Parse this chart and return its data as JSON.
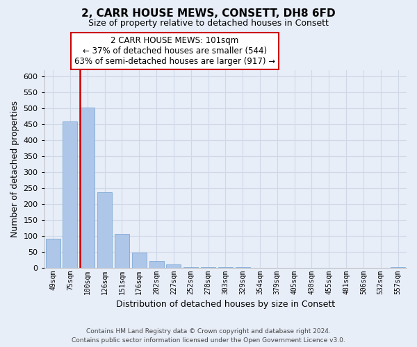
{
  "title": "2, CARR HOUSE MEWS, CONSETT, DH8 6FD",
  "subtitle": "Size of property relative to detached houses in Consett",
  "xlabel": "Distribution of detached houses by size in Consett",
  "ylabel": "Number of detached properties",
  "bar_labels": [
    "49sqm",
    "75sqm",
    "100sqm",
    "126sqm",
    "151sqm",
    "176sqm",
    "202sqm",
    "227sqm",
    "252sqm",
    "278sqm",
    "303sqm",
    "329sqm",
    "354sqm",
    "379sqm",
    "405sqm",
    "430sqm",
    "455sqm",
    "481sqm",
    "506sqm",
    "532sqm",
    "557sqm"
  ],
  "bar_values": [
    90,
    458,
    502,
    237,
    106,
    46,
    21,
    10,
    2,
    1,
    1,
    1,
    0,
    0,
    0,
    0,
    0,
    0,
    0,
    0,
    1
  ],
  "bar_color": "#aec6e8",
  "bar_edge_color": "#6fa0d0",
  "vline_color": "#cc0000",
  "vline_x_index": 2,
  "ylim": [
    0,
    620
  ],
  "yticks": [
    0,
    50,
    100,
    150,
    200,
    250,
    300,
    350,
    400,
    450,
    500,
    550,
    600
  ],
  "annotation_title": "2 CARR HOUSE MEWS: 101sqm",
  "annotation_line1": "← 37% of detached houses are smaller (544)",
  "annotation_line2": "63% of semi-detached houses are larger (917) →",
  "annotation_box_facecolor": "#ffffff",
  "annotation_box_edgecolor": "#cc0000",
  "footer_line1": "Contains HM Land Registry data © Crown copyright and database right 2024.",
  "footer_line2": "Contains public sector information licensed under the Open Government Licence v3.0.",
  "background_color": "#e8eef8",
  "grid_color": "#d0d8e8",
  "title_fontsize": 11,
  "subtitle_fontsize": 9
}
